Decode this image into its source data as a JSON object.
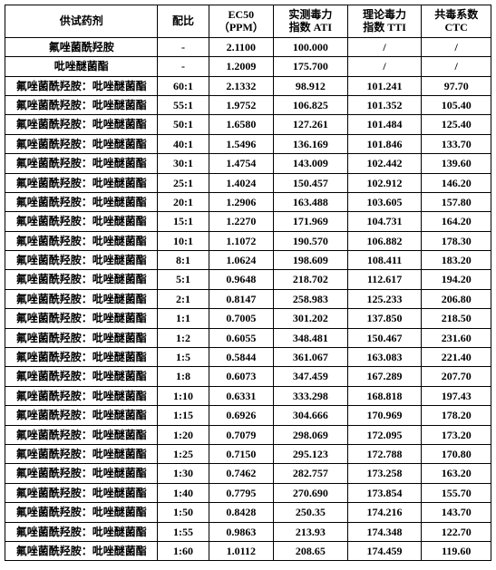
{
  "headers": {
    "name": "供试药剂",
    "ratio": "配比",
    "ec50": "EC50\n（PPM）",
    "ati": "实测毒力\n指数 ATI",
    "tti": "理论毒力\n指数 TTI",
    "ctc": "共毒系数\nCTC"
  },
  "rows": [
    {
      "name": "氟唑菌酰羟胺",
      "ratio": "-",
      "ec50": "2.1100",
      "ati": "100.000",
      "tti": "/",
      "ctc": "/"
    },
    {
      "name": "吡唑醚菌酯",
      "ratio": "-",
      "ec50": "1.2009",
      "ati": "175.700",
      "tti": "/",
      "ctc": "/"
    },
    {
      "name": "氟唑菌酰羟胺：吡唑醚菌酯",
      "ratio": "60:1",
      "ec50": "2.1332",
      "ati": "98.912",
      "tti": "101.241",
      "ctc": "97.70"
    },
    {
      "name": "氟唑菌酰羟胺：吡唑醚菌酯",
      "ratio": "55:1",
      "ec50": "1.9752",
      "ati": "106.825",
      "tti": "101.352",
      "ctc": "105.40"
    },
    {
      "name": "氟唑菌酰羟胺：吡唑醚菌酯",
      "ratio": "50:1",
      "ec50": "1.6580",
      "ati": "127.261",
      "tti": "101.484",
      "ctc": "125.40"
    },
    {
      "name": "氟唑菌酰羟胺：吡唑醚菌酯",
      "ratio": "40:1",
      "ec50": "1.5496",
      "ati": "136.169",
      "tti": "101.846",
      "ctc": "133.70"
    },
    {
      "name": "氟唑菌酰羟胺：吡唑醚菌酯",
      "ratio": "30:1",
      "ec50": "1.4754",
      "ati": "143.009",
      "tti": "102.442",
      "ctc": "139.60"
    },
    {
      "name": "氟唑菌酰羟胺：吡唑醚菌酯",
      "ratio": "25:1",
      "ec50": "1.4024",
      "ati": "150.457",
      "tti": "102.912",
      "ctc": "146.20"
    },
    {
      "name": "氟唑菌酰羟胺：吡唑醚菌酯",
      "ratio": "20:1",
      "ec50": "1.2906",
      "ati": "163.488",
      "tti": "103.605",
      "ctc": "157.80"
    },
    {
      "name": "氟唑菌酰羟胺：吡唑醚菌酯",
      "ratio": "15:1",
      "ec50": "1.2270",
      "ati": "171.969",
      "tti": "104.731",
      "ctc": "164.20"
    },
    {
      "name": "氟唑菌酰羟胺：吡唑醚菌酯",
      "ratio": "10:1",
      "ec50": "1.1072",
      "ati": "190.570",
      "tti": "106.882",
      "ctc": "178.30"
    },
    {
      "name": "氟唑菌酰羟胺：吡唑醚菌酯",
      "ratio": "8:1",
      "ec50": "1.0624",
      "ati": "198.609",
      "tti": "108.411",
      "ctc": "183.20"
    },
    {
      "name": "氟唑菌酰羟胺：吡唑醚菌酯",
      "ratio": "5:1",
      "ec50": "0.9648",
      "ati": "218.702",
      "tti": "112.617",
      "ctc": "194.20"
    },
    {
      "name": "氟唑菌酰羟胺：吡唑醚菌酯",
      "ratio": "2:1",
      "ec50": "0.8147",
      "ati": "258.983",
      "tti": "125.233",
      "ctc": "206.80"
    },
    {
      "name": "氟唑菌酰羟胺：吡唑醚菌酯",
      "ratio": "1:1",
      "ec50": "0.7005",
      "ati": "301.202",
      "tti": "137.850",
      "ctc": "218.50"
    },
    {
      "name": "氟唑菌酰羟胺：吡唑醚菌酯",
      "ratio": "1:2",
      "ec50": "0.6055",
      "ati": "348.481",
      "tti": "150.467",
      "ctc": "231.60"
    },
    {
      "name": "氟唑菌酰羟胺：吡唑醚菌酯",
      "ratio": "1:5",
      "ec50": "0.5844",
      "ati": "361.067",
      "tti": "163.083",
      "ctc": "221.40"
    },
    {
      "name": "氟唑菌酰羟胺：吡唑醚菌酯",
      "ratio": "1:8",
      "ec50": "0.6073",
      "ati": "347.459",
      "tti": "167.289",
      "ctc": "207.70"
    },
    {
      "name": "氟唑菌酰羟胺：吡唑醚菌酯",
      "ratio": "1:10",
      "ec50": "0.6331",
      "ati": "333.298",
      "tti": "168.818",
      "ctc": "197.43"
    },
    {
      "name": "氟唑菌酰羟胺：吡唑醚菌酯",
      "ratio": "1:15",
      "ec50": "0.6926",
      "ati": "304.666",
      "tti": "170.969",
      "ctc": "178.20"
    },
    {
      "name": "氟唑菌酰羟胺：吡唑醚菌酯",
      "ratio": "1:20",
      "ec50": "0.7079",
      "ati": "298.069",
      "tti": "172.095",
      "ctc": "173.20"
    },
    {
      "name": "氟唑菌酰羟胺：吡唑醚菌酯",
      "ratio": "1:25",
      "ec50": "0.7150",
      "ati": "295.123",
      "tti": "172.788",
      "ctc": "170.80"
    },
    {
      "name": "氟唑菌酰羟胺：吡唑醚菌酯",
      "ratio": "1:30",
      "ec50": "0.7462",
      "ati": "282.757",
      "tti": "173.258",
      "ctc": "163.20"
    },
    {
      "name": "氟唑菌酰羟胺：吡唑醚菌酯",
      "ratio": "1:40",
      "ec50": "0.7795",
      "ati": "270.690",
      "tti": "173.854",
      "ctc": "155.70"
    },
    {
      "name": "氟唑菌酰羟胺：吡唑醚菌酯",
      "ratio": "1:50",
      "ec50": "0.8428",
      "ati": "250.35",
      "tti": "174.216",
      "ctc": "143.70"
    },
    {
      "name": "氟唑菌酰羟胺：吡唑醚菌酯",
      "ratio": "1:55",
      "ec50": "0.9863",
      "ati": "213.93",
      "tti": "174.348",
      "ctc": "122.70"
    },
    {
      "name": "氟唑菌酰羟胺：吡唑醚菌酯",
      "ratio": "1:60",
      "ec50": "1.0112",
      "ati": "208.65",
      "tti": "174.459",
      "ctc": "119.60"
    }
  ]
}
